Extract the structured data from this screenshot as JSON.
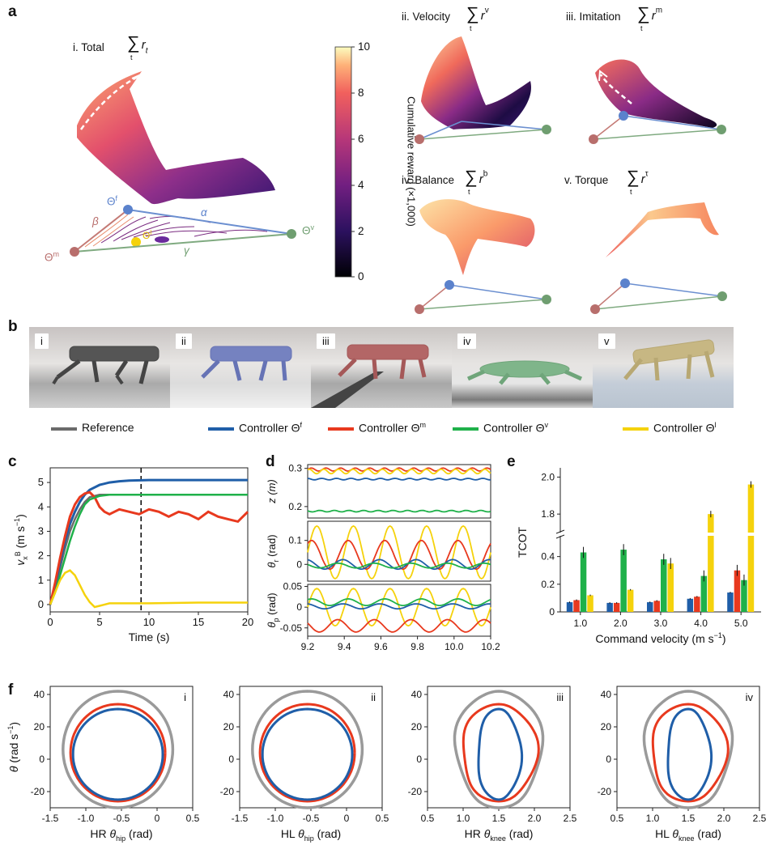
{
  "panels": {
    "a": "a",
    "b": "b",
    "c": "c",
    "d": "d",
    "e": "e",
    "f": "f"
  },
  "panel_a": {
    "total": {
      "title": "i. Total",
      "formula_sum": "∑",
      "formula_sub": "t",
      "formula_r": "r",
      "formula_sup": "t"
    },
    "velocity": {
      "title": "ii. Velocity",
      "formula_sum": "∑",
      "formula_sub": "t",
      "formula_r": "r",
      "formula_sup": "v"
    },
    "imitation": {
      "title": "iii. Imitation",
      "formula_sum": "∑",
      "formula_sub": "t",
      "formula_r": "r",
      "formula_sup": "m"
    },
    "balance": {
      "title": "iv. Balance",
      "formula_sum": "∑",
      "formula_sub": "t",
      "formula_r": "r",
      "formula_sup": "b"
    },
    "torque": {
      "title": "v. Torque",
      "formula_sum": "∑",
      "formula_sub": "t",
      "formula_r": "r",
      "formula_sup": "τ"
    },
    "triangle_labels": {
      "theta_f": "Θ",
      "theta_f_sup": "f",
      "theta_m": "Θ",
      "theta_m_sup": "m",
      "theta_v": "Θ",
      "theta_v_sup": "v",
      "theta_l": "Θ",
      "theta_l_sup": "l",
      "alpha": "α",
      "beta": "β",
      "gamma": "γ"
    },
    "colorbar": {
      "label": "Cumulative reward (×1,000)",
      "ticks": [
        "10",
        "8",
        "6",
        "4",
        "2",
        "0"
      ]
    }
  },
  "panel_b": {
    "tiles": [
      "i",
      "ii",
      "iii",
      "iv",
      "v"
    ],
    "legend": [
      {
        "label": "Reference",
        "color": "#6b6b6b"
      },
      {
        "label": "Controller Θ",
        "sup": "f",
        "color": "#1f5ea8"
      },
      {
        "label": "Controller Θ",
        "sup": "m",
        "color": "#e8391e"
      },
      {
        "label": "Controller Θ",
        "sup": "v",
        "color": "#1fb14a"
      },
      {
        "label": "Controller Θ",
        "sup": "l",
        "color": "#f5d20c"
      }
    ]
  },
  "chart_data": [
    {
      "id": "c",
      "type": "line",
      "title": "",
      "xlabel": "Time (s)",
      "ylabel": "v",
      "ylabel_sub": "x",
      "ylabel_sup": "B",
      "ylabel_unit": "(m s",
      "xlim": [
        0,
        20
      ],
      "ylim": [
        -0.3,
        5.6
      ],
      "xticks": [
        "0",
        "5",
        "10",
        "15",
        "20"
      ],
      "yticks": [
        "0",
        "1",
        "2",
        "3",
        "4",
        "5"
      ],
      "vline_x": 9.2,
      "series": [
        {
          "name": "Reference",
          "color": "#6b6b6b",
          "x": [
            0,
            0.5,
            1,
            1.5,
            2,
            2.5,
            3,
            3.5,
            4,
            5,
            6,
            8,
            10,
            15,
            20
          ],
          "y": [
            0,
            0.7,
            1.5,
            2.3,
            3.0,
            3.5,
            3.9,
            4.2,
            4.4,
            4.5,
            4.5,
            4.5,
            4.5,
            4.5,
            4.5
          ]
        },
        {
          "name": "Controller Θf",
          "color": "#1f5ea8",
          "x": [
            0,
            0.5,
            1,
            1.5,
            2,
            2.5,
            3,
            3.5,
            4,
            5,
            6,
            7,
            8,
            10,
            15,
            20
          ],
          "y": [
            0,
            0.8,
            1.7,
            2.6,
            3.3,
            3.8,
            4.2,
            4.5,
            4.7,
            4.9,
            5.0,
            5.05,
            5.08,
            5.1,
            5.1,
            5.1
          ]
        },
        {
          "name": "Controller Θm",
          "color": "#e8391e",
          "x": [
            0,
            0.5,
            1,
            1.5,
            2,
            2.5,
            3,
            3.5,
            4,
            4.5,
            5,
            5.5,
            6,
            7,
            8,
            9,
            10,
            11,
            12,
            13,
            14,
            15,
            16,
            17,
            18,
            19,
            20
          ],
          "y": [
            0,
            0.9,
            1.9,
            2.8,
            3.6,
            4.1,
            4.4,
            4.55,
            4.6,
            4.4,
            4.0,
            3.8,
            3.7,
            3.9,
            3.8,
            3.7,
            3.9,
            3.8,
            3.6,
            3.8,
            3.7,
            3.5,
            3.8,
            3.6,
            3.5,
            3.4,
            3.8
          ]
        },
        {
          "name": "Controller Θv",
          "color": "#1fb14a",
          "x": [
            0,
            0.5,
            1,
            1.5,
            2,
            2.5,
            3,
            3.5,
            4,
            5,
            6,
            8,
            10,
            15,
            20
          ],
          "y": [
            0,
            0.5,
            1.2,
            1.9,
            2.6,
            3.2,
            3.7,
            4.1,
            4.3,
            4.45,
            4.5,
            4.5,
            4.5,
            4.5,
            4.5
          ]
        },
        {
          "name": "Controller Θl",
          "color": "#f5d20c",
          "x": [
            0,
            0.5,
            1,
            1.5,
            2,
            2.5,
            3,
            3.5,
            4,
            4.5,
            5,
            6,
            8,
            10,
            15,
            20
          ],
          "y": [
            0,
            0.5,
            1.0,
            1.3,
            1.4,
            1.2,
            0.8,
            0.4,
            0.1,
            -0.1,
            -0.05,
            0.05,
            0.05,
            0.05,
            0.08,
            0.08
          ]
        }
      ]
    },
    {
      "id": "d",
      "type": "line",
      "xlabel": "Time (s)",
      "xlim": [
        9.2,
        10.2
      ],
      "xticks": [
        "9.2",
        "9.4",
        "9.6",
        "9.8",
        "10.0",
        "10.2"
      ],
      "subplots": [
        {
          "ylabel": "z (m)",
          "ylim": [
            0.17,
            0.31
          ],
          "yticks": [
            "0.2",
            "0.3"
          ],
          "ytick_vals": [
            0.2,
            0.3
          ],
          "series": [
            {
              "color": "#e8391e",
              "level": 0.297,
              "amp": 0.004
            },
            {
              "color": "#f5d20c",
              "level": 0.292,
              "amp": 0.006
            },
            {
              "color": "#1f5ea8",
              "level": 0.272,
              "amp": 0.002
            },
            {
              "color": "#1fb14a",
              "level": 0.188,
              "amp": 0.002
            }
          ]
        },
        {
          "ylabel": "θ",
          "ylabel_sub": "r",
          "ylabel_unit": " (rad)",
          "ylim": [
            -0.07,
            0.18
          ],
          "yticks": [
            "0.1",
            "0",
            "-0.1"
          ],
          "ytick_vals": [
            0.1,
            0,
            -0.1
          ],
          "series": [
            {
              "color": "#f5d20c",
              "level": 0.05,
              "amp": 0.11
            },
            {
              "color": "#e8391e",
              "level": 0.04,
              "amp": 0.06
            },
            {
              "color": "#1f5ea8",
              "level": 0.0,
              "amp": 0.02
            },
            {
              "color": "#1fb14a",
              "level": -0.005,
              "amp": 0.01
            }
          ]
        },
        {
          "ylabel": "θ",
          "ylabel_sub": "p",
          "ylabel_unit": " (rad)",
          "ylim": [
            -0.07,
            0.055
          ],
          "yticks": [
            "0.05",
            "0",
            "-0.05"
          ],
          "ytick_vals": [
            0.05,
            0,
            -0.05
          ],
          "series": [
            {
              "color": "#f5d20c",
              "level": 0.0,
              "amp": 0.045
            },
            {
              "color": "#1fb14a",
              "level": 0.012,
              "amp": 0.008
            },
            {
              "color": "#1f5ea8",
              "level": 0.002,
              "amp": 0.006
            },
            {
              "color": "#e8391e",
              "level": -0.045,
              "amp": 0.015
            }
          ]
        }
      ]
    },
    {
      "id": "e",
      "type": "bar",
      "xlabel": "Command velocity (m s",
      "ylabel": "TCOT",
      "categories": [
        "1.0",
        "2.0",
        "3.0",
        "4.0",
        "5.0"
      ],
      "yticks_lower": [
        "0",
        "0.2",
        "0.4"
      ],
      "yticks_upper": [
        "1.8",
        "2.0"
      ],
      "series": [
        {
          "name": "Controller Θf",
          "color": "#1f5ea8",
          "values": [
            0.07,
            0.065,
            0.07,
            0.095,
            0.14
          ]
        },
        {
          "name": "Controller Θm",
          "color": "#e8391e",
          "values": [
            0.085,
            0.065,
            0.08,
            0.11,
            0.3
          ]
        },
        {
          "name": "Controller Θv",
          "color": "#1fb14a",
          "values": [
            0.43,
            0.45,
            0.38,
            0.26,
            0.23
          ]
        },
        {
          "name": "Controller Θl",
          "color": "#f5d20c",
          "values": [
            0.12,
            0.16,
            0.35,
            1.8,
            1.96
          ]
        }
      ]
    },
    {
      "id": "f",
      "type": "line",
      "ylabel": "θ",
      "ylabel_unit": " (rad s",
      "yticks": [
        "40",
        "20",
        "0",
        "-20"
      ],
      "subplots": [
        {
          "tag": "i",
          "xlabel": "HR θ",
          "xlabel_sub": "hip",
          "xlabel_unit": " (rad)",
          "xticks": [
            "-1.5",
            "-1.0",
            "-0.5",
            "0",
            "0.5"
          ]
        },
        {
          "tag": "ii",
          "xlabel": "HL θ",
          "xlabel_sub": "hip",
          "xlabel_unit": " (rad)",
          "xticks": [
            "-1.5",
            "-1.0",
            "-0.5",
            "0",
            "0.5"
          ]
        },
        {
          "tag": "iii",
          "xlabel": "HR θ",
          "xlabel_sub": "knee",
          "xlabel_unit": " (rad)",
          "xticks": [
            "0.5",
            "1.0",
            "1.5",
            "2.0",
            "2.5"
          ]
        },
        {
          "tag": "iv",
          "xlabel": "HL θ",
          "xlabel_sub": "knee",
          "xlabel_unit": " (rad)",
          "xticks": [
            "0.5",
            "1.0",
            "1.5",
            "2.0",
            "2.5"
          ]
        }
      ]
    }
  ],
  "common": {
    "minus_one": "−1",
    "sup_neg1": "−1"
  }
}
